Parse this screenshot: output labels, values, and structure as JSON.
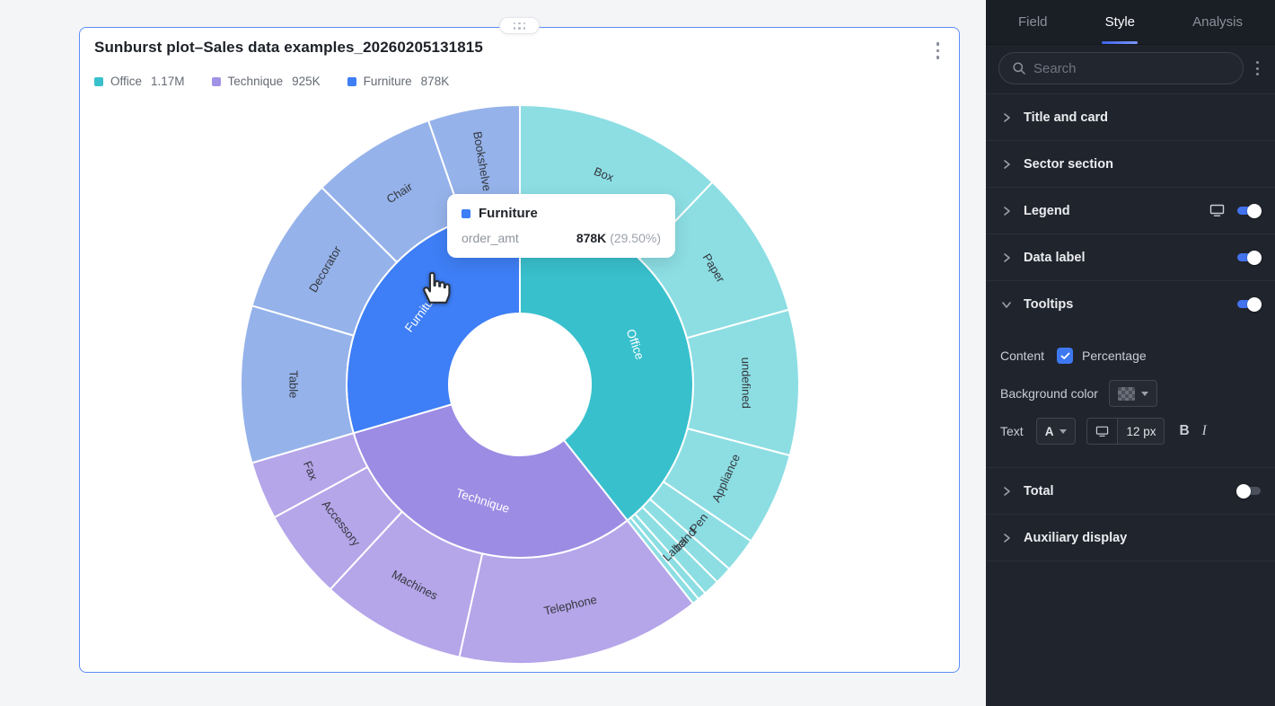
{
  "card": {
    "title": "Sunburst plot–Sales data examples_20260205131815",
    "border_color": "#5c8df8",
    "legend": [
      {
        "label": "Office",
        "value": "1.17M",
        "color": "#38c0cd"
      },
      {
        "label": "Technique",
        "value": "925K",
        "color": "#a292e6"
      },
      {
        "label": "Furniture",
        "value": "878K",
        "color": "#3e7ef6"
      }
    ]
  },
  "tooltip": {
    "swatch_color": "#3e7ef6",
    "title": "Furniture",
    "metric": "order_amt",
    "value": "878K",
    "percent": "(29.50%)"
  },
  "chart_data": {
    "type": "sunburst",
    "title": "Sunburst plot–Sales data examples_20260205131815",
    "value_field": "order_amt",
    "unit": "K",
    "start_angle_deg": 0,
    "center": [
      490,
      397
    ],
    "radii": [
      79,
      193,
      311
    ],
    "label_color_inner": "#ffffff",
    "label_color_outer": "#33373d",
    "series": [
      {
        "name": "Office",
        "value": 1170,
        "display": "1.17M",
        "color": "#38c0cd",
        "child_color": "#8cdee3",
        "children": [
          {
            "name": "Box",
            "value": 360
          },
          {
            "name": "Paper",
            "value": 255
          },
          {
            "name": "undefined",
            "value": 250
          },
          {
            "name": "Appliance",
            "value": 160
          },
          {
            "name": "Pen",
            "value": 60
          },
          {
            "name": "band",
            "value": 30
          },
          {
            "name": "Label",
            "value": 28
          },
          {
            "name": "",
            "value": 15
          },
          {
            "name": "",
            "value": 12
          }
        ]
      },
      {
        "name": "Technique",
        "value": 925,
        "display": "925K",
        "color": "#9c8ce4",
        "child_color": "#b5a5e9",
        "children": [
          {
            "name": "Telephone",
            "value": 420
          },
          {
            "name": "Machines",
            "value": 250
          },
          {
            "name": "Accessory",
            "value": 155
          },
          {
            "name": "Fax",
            "value": 100
          }
        ]
      },
      {
        "name": "Furniture",
        "value": 878,
        "display": "878K",
        "color": "#3e7ef6",
        "child_color": "#95b2ea",
        "children": [
          {
            "name": "Table",
            "value": 270
          },
          {
            "name": "Decorator",
            "value": 235
          },
          {
            "name": "Chair",
            "value": 215
          },
          {
            "name": "Bookshelve",
            "value": 158,
            "label_rotate": "radial"
          }
        ]
      }
    ]
  },
  "panel": {
    "accent": "#4272ec",
    "tabs": [
      {
        "label": "Field",
        "active": false
      },
      {
        "label": "Style",
        "active": true
      },
      {
        "label": "Analysis",
        "active": false
      }
    ],
    "search_placeholder": "Search",
    "sections": [
      {
        "label": "Title and card",
        "expanded": false
      },
      {
        "label": "Sector section",
        "expanded": false
      },
      {
        "label": "Legend",
        "expanded": false,
        "toggle": "on"
      },
      {
        "label": "Data label",
        "expanded": false,
        "toggle": "on"
      },
      {
        "label": "Tooltips",
        "expanded": true,
        "toggle": "on"
      },
      {
        "label": "Total",
        "expanded": false,
        "toggle": "off"
      },
      {
        "label": "Auxiliary display",
        "expanded": false
      }
    ],
    "tooltips_controls": {
      "content_label": "Content",
      "percentage_label": "Percentage",
      "percentage_checked": true,
      "background_color_label": "Background color",
      "text_label": "Text",
      "font_dropdown": "A",
      "font_size": "12 px",
      "bold_label": "B",
      "italic_label": "I"
    }
  }
}
